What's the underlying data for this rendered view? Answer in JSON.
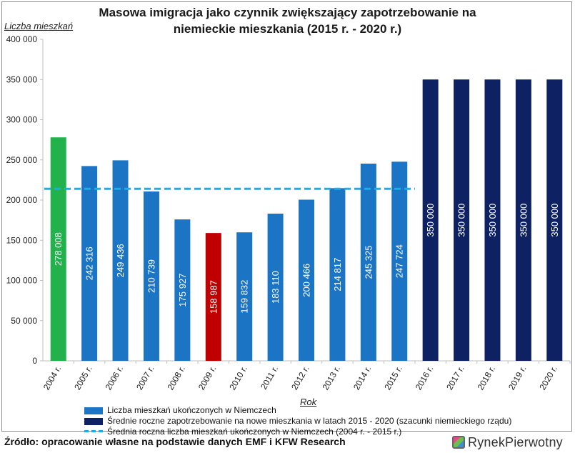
{
  "chart_data": {
    "type": "bar",
    "title": "Masowa imigracja jako czynnik zwiększający zapotrzebowanie na niemieckie mieszkania (2015 r. - 2020 r.)",
    "ylabel": "Liczba mieszkań",
    "xlabel": "Rok",
    "ylim": [
      0,
      400000
    ],
    "yticks": [
      "0",
      "50 000",
      "100 000",
      "150 000",
      "200 000",
      "250 000",
      "300 000",
      "350 000",
      "400 000"
    ],
    "ytick_values": [
      0,
      50000,
      100000,
      150000,
      200000,
      250000,
      300000,
      350000,
      400000
    ],
    "categories": [
      "2004 r.",
      "2005 r.",
      "2006 r.",
      "2007 r.",
      "2008 r.",
      "2009 r.",
      "2010 r.",
      "2011 r.",
      "2012 r.",
      "2013 r.",
      "2014 r.",
      "2015 r.",
      "2016 r.",
      "2017 r.",
      "2018 r.",
      "2019 r.",
      "2020 r."
    ],
    "values": [
      278008,
      242316,
      249436,
      210739,
      175927,
      158987,
      159832,
      183110,
      200466,
      214817,
      245325,
      247724,
      350000,
      350000,
      350000,
      350000,
      350000
    ],
    "value_labels": [
      "278 008",
      "242 316",
      "249 436",
      "210 739",
      "175 927",
      "158 987",
      "159 832",
      "183 110",
      "200 466",
      "214 817",
      "245 325",
      "247 724",
      "350 000",
      "350 000",
      "350 000",
      "350 000",
      "350 000"
    ],
    "bar_colors": [
      "#21b24b",
      "#1b74c4",
      "#1b74c4",
      "#1b74c4",
      "#1b74c4",
      "#c00000",
      "#1b74c4",
      "#1b74c4",
      "#1b74c4",
      "#1b74c4",
      "#1b74c4",
      "#1b74c4",
      "#0d2163",
      "#0d2163",
      "#0d2163",
      "#0d2163",
      "#0d2163"
    ],
    "average_line": {
      "value": 214000,
      "from": "2004 r.",
      "to": "2015 r.",
      "color": "#1aaee8"
    },
    "legend": [
      {
        "label": "Liczba mieszkań ukończonych w Niemczech",
        "color": "#1b74c4",
        "kind": "box"
      },
      {
        "label": "Średnie roczne zapotrzebowanie na nowe mieszkania w latach 2015 - 2020 (szacunki niemieckiego rządu)",
        "color": "#0d2163",
        "kind": "box"
      },
      {
        "label": "Średnia roczna liczba mieszkań ukończonych w Niemczech (2004 r. - 2015 r.)",
        "color": "#1aaee8",
        "kind": "dash"
      }
    ],
    "grid": false,
    "legend_position": "bottom"
  },
  "footer": {
    "source": "Źródło: opracowanie własne na podstawie danych EMF i KFW Research",
    "brand_part1": "Rynek",
    "brand_part2": "Pierwotny"
  }
}
